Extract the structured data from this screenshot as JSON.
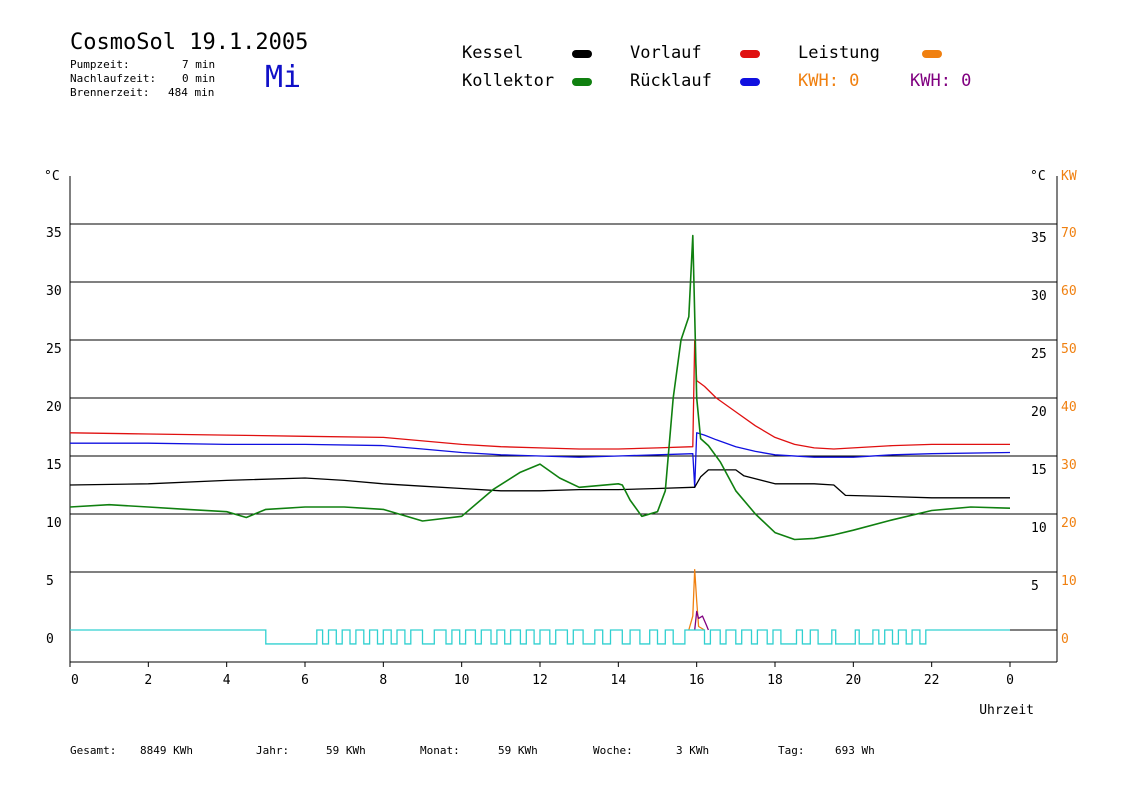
{
  "header": {
    "title": "CosmoSol 19.1.2005",
    "weekday": "Mi",
    "stats": [
      {
        "label": "Pumpzeit:",
        "value": "7 min"
      },
      {
        "label": "Nachlaufzeit:",
        "value": "0 min"
      },
      {
        "label": "Brennerzeit:",
        "value": "484 min"
      }
    ]
  },
  "legend": {
    "items": [
      {
        "label": "Kessel",
        "color": "#000000"
      },
      {
        "label": "Vorlauf",
        "color": "#e01010"
      },
      {
        "label": "Leistung",
        "color": "#f08010"
      },
      {
        "label": "Kollektor",
        "color": "#108010"
      },
      {
        "label": "Rücklauf",
        "color": "#1010e0"
      }
    ],
    "kwh_orange": "KWH: 0",
    "kwh_purple": "KWH: 0"
  },
  "footer": {
    "items": [
      {
        "label": "Gesamt:",
        "value": "8849 KWh"
      },
      {
        "label": "Jahr:",
        "value": "59 KWh"
      },
      {
        "label": "Monat:",
        "value": "59 KWh"
      },
      {
        "label": "Woche:",
        "value": "3 KWh"
      },
      {
        "label": "Tag:",
        "value": "693 Wh"
      }
    ]
  },
  "chart_data": {
    "type": "line",
    "xlabel": "Uhrzeit",
    "ylabel_left": "°C",
    "ylabel_right": "°C",
    "ylabel_right2": "KW",
    "x_ticks": [
      "0",
      "2",
      "4",
      "6",
      "8",
      "10",
      "12",
      "14",
      "16",
      "18",
      "20",
      "22",
      "0"
    ],
    "xlim": [
      0,
      24
    ],
    "ylim": [
      0,
      35
    ],
    "y_ticks_left": [
      0,
      5,
      10,
      15,
      20,
      25,
      30,
      35
    ],
    "y_ticks_right": [
      5,
      10,
      15,
      20,
      25,
      30,
      35
    ],
    "y_ticks_kw": [
      0,
      10,
      20,
      30,
      40,
      50,
      60,
      70
    ],
    "grid": "horizontal",
    "series": [
      {
        "name": "Vorlauf",
        "color": "#e01010",
        "x": [
          0,
          2,
          4,
          6,
          8,
          9,
          10,
          11,
          12,
          13,
          14,
          15,
          15.9,
          15.95,
          16.0,
          16.2,
          16.5,
          17,
          17.5,
          18,
          18.5,
          19,
          19.5,
          20,
          21,
          22,
          24
        ],
        "y": [
          17,
          16.9,
          16.8,
          16.7,
          16.6,
          16.3,
          16,
          15.8,
          15.7,
          15.6,
          15.6,
          15.7,
          15.8,
          25,
          21.5,
          21,
          20,
          18.8,
          17.6,
          16.6,
          16,
          15.7,
          15.6,
          15.7,
          15.9,
          16,
          16
        ]
      },
      {
        "name": "Rücklauf",
        "color": "#1010e0",
        "x": [
          0,
          2,
          4,
          6,
          8,
          9,
          10,
          11,
          12,
          13,
          14,
          15,
          15.9,
          15.95,
          16.0,
          16.2,
          16.5,
          17,
          17.5,
          18,
          19,
          20,
          21,
          22,
          24
        ],
        "y": [
          16.1,
          16.1,
          16,
          16,
          15.9,
          15.6,
          15.3,
          15.1,
          15,
          14.9,
          15,
          15.1,
          15.2,
          12.3,
          17,
          16.8,
          16.4,
          15.8,
          15.4,
          15.1,
          14.9,
          14.9,
          15.1,
          15.2,
          15.3
        ]
      },
      {
        "name": "Kessel",
        "color": "#000000",
        "x": [
          0,
          2,
          4,
          6,
          7,
          8,
          9,
          10,
          11,
          12,
          13,
          14,
          15,
          15.9,
          15.95,
          16.1,
          16.3,
          17,
          17.2,
          18,
          19,
          19.5,
          19.8,
          21,
          22,
          24
        ],
        "y": [
          12.5,
          12.6,
          12.9,
          13.1,
          12.9,
          12.6,
          12.4,
          12.2,
          12,
          12,
          12.1,
          12.1,
          12.2,
          12.3,
          12.3,
          13.2,
          13.8,
          13.8,
          13.3,
          12.6,
          12.6,
          12.5,
          11.6,
          11.5,
          11.4,
          11.4
        ]
      },
      {
        "name": "Kollektor",
        "color": "#108010",
        "x": [
          0,
          1,
          2,
          3,
          4,
          4.5,
          5,
          6,
          7,
          8,
          9,
          10,
          10.8,
          11.5,
          12,
          12.5,
          13,
          14,
          14.1,
          14.3,
          14.6,
          15,
          15.2,
          15.4,
          15.6,
          15.8,
          15.9,
          16.0,
          16.1,
          16.3,
          16.6,
          17,
          17.5,
          18,
          18.5,
          19,
          19.5,
          20,
          21,
          22,
          23,
          24
        ],
        "y": [
          10.6,
          10.8,
          10.6,
          10.4,
          10.2,
          9.7,
          10.4,
          10.6,
          10.6,
          10.4,
          9.4,
          9.8,
          12.1,
          13.6,
          14.3,
          13.1,
          12.3,
          12.6,
          12.5,
          11.2,
          9.8,
          10.2,
          12,
          20,
          25,
          27,
          34,
          20,
          16.5,
          15.9,
          14.5,
          12,
          10,
          8.4,
          7.8,
          7.9,
          8.2,
          8.6,
          9.5,
          10.3,
          10.6,
          10.5
        ]
      },
      {
        "name": "Leistung",
        "color": "#f08010",
        "x": [
          15.8,
          15.9,
          15.95,
          16.0,
          16.05,
          16.2
        ],
        "y": [
          0,
          1.2,
          5.2,
          2.5,
          0.3,
          0
        ]
      },
      {
        "name": "KWH",
        "color": "#800080",
        "x": [
          15.95,
          16.0,
          16.05,
          16.15,
          16.25,
          16.3
        ],
        "y": [
          0,
          1.6,
          1.0,
          1.2,
          0.4,
          0
        ]
      }
    ],
    "burner_state": {
      "name": "Brenner",
      "color": "#30d0d0",
      "on_intervals": [
        [
          5.0,
          6.3
        ],
        [
          6.45,
          6.6
        ],
        [
          6.8,
          6.95
        ],
        [
          7.15,
          7.3
        ],
        [
          7.5,
          7.65
        ],
        [
          7.85,
          8.0
        ],
        [
          8.2,
          8.35
        ],
        [
          8.55,
          8.7
        ],
        [
          9.0,
          9.3
        ],
        [
          9.6,
          9.75
        ],
        [
          9.95,
          10.1
        ],
        [
          10.35,
          10.5
        ],
        [
          10.75,
          10.9
        ],
        [
          11.1,
          11.25
        ],
        [
          11.5,
          11.65
        ],
        [
          11.85,
          12.0
        ],
        [
          12.25,
          12.4
        ],
        [
          12.7,
          12.85
        ],
        [
          13.1,
          13.4
        ],
        [
          13.6,
          13.8
        ],
        [
          14.1,
          14.3
        ],
        [
          14.55,
          14.8
        ],
        [
          15.0,
          15.2
        ],
        [
          15.4,
          15.7
        ],
        [
          16.2,
          16.35
        ],
        [
          16.6,
          16.75
        ],
        [
          17.0,
          17.15
        ],
        [
          17.4,
          17.55
        ],
        [
          17.8,
          17.95
        ],
        [
          18.15,
          18.55
        ],
        [
          18.7,
          18.9
        ],
        [
          19.1,
          19.45
        ],
        [
          19.55,
          20.05
        ],
        [
          20.15,
          20.5
        ],
        [
          20.65,
          20.8
        ],
        [
          21.0,
          21.15
        ],
        [
          21.35,
          21.5
        ],
        [
          21.7,
          21.85
        ]
      ]
    }
  }
}
